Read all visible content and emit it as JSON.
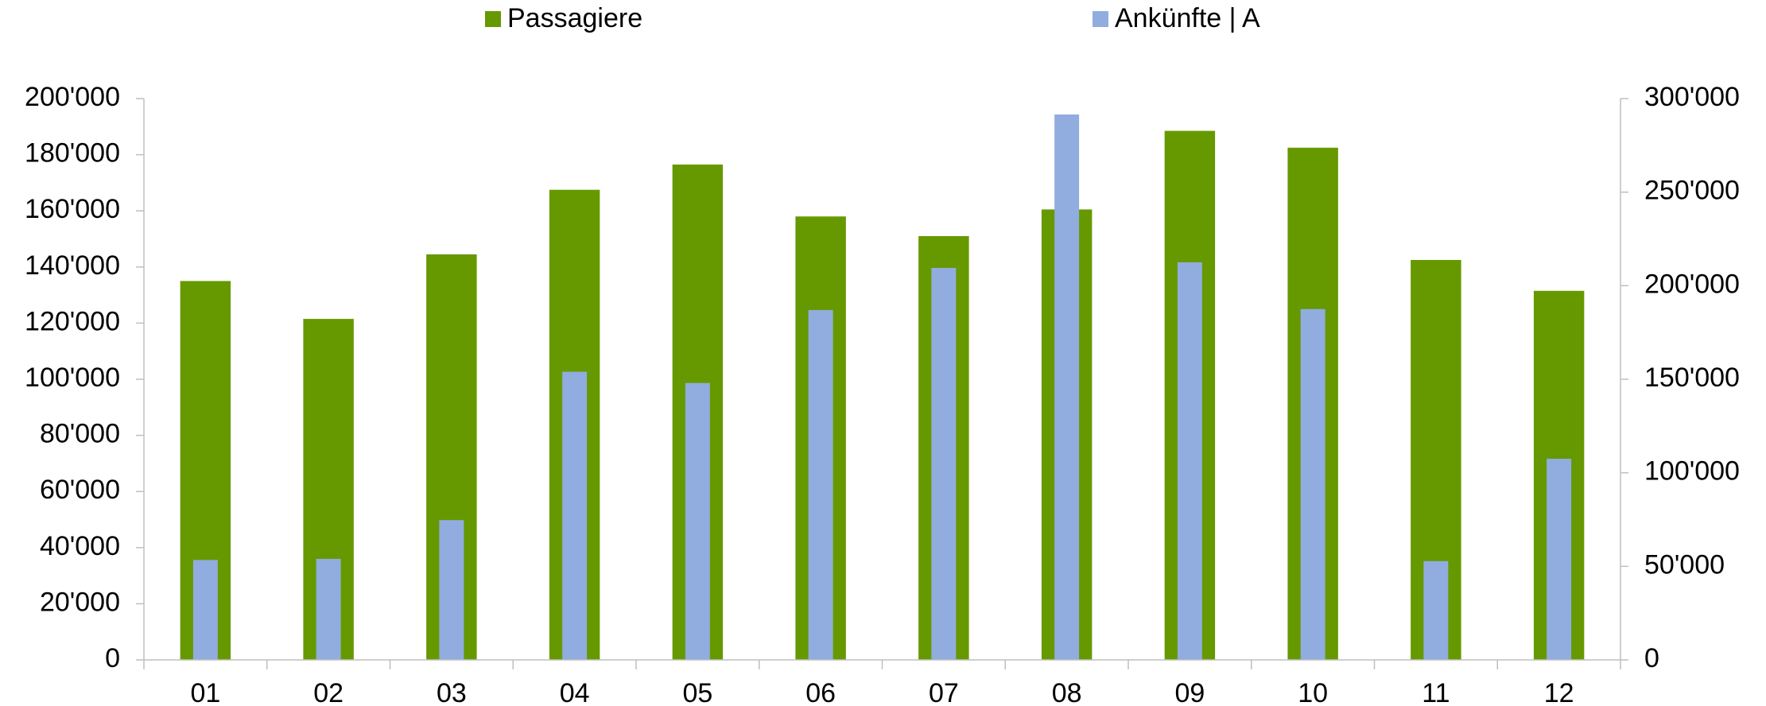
{
  "chart_data": {
    "type": "bar",
    "categories": [
      "01",
      "02",
      "03",
      "04",
      "05",
      "06",
      "07",
      "08",
      "09",
      "10",
      "11",
      "12"
    ],
    "series": [
      {
        "name": "Passagiere",
        "color": "#669900",
        "values": [
          135000,
          121500,
          144500,
          167500,
          176500,
          158000,
          151000,
          160500,
          188500,
          182500,
          142500,
          131500
        ]
      },
      {
        "name": "Ankünfte | A",
        "color": "#91acdf",
        "axis": "y2",
        "values": [
          53400,
          54000,
          74700,
          154000,
          148000,
          187000,
          209500,
          291500,
          212500,
          187500,
          52800,
          107500
        ]
      }
    ],
    "ylim": [
      0,
      200000
    ],
    "yticks": [
      0,
      {
        "value": 20000,
        "label": "20'000"
      },
      {
        "value": 40000,
        "label": "40'000"
      },
      {
        "value": 60000,
        "label": "60'000"
      },
      {
        "value": 80000,
        "label": "80'000"
      },
      {
        "value": 100000,
        "label": "100'000"
      },
      {
        "value": 120000,
        "label": "120'000"
      },
      {
        "value": 140000,
        "label": "140'000"
      },
      {
        "value": 160000,
        "label": "160'000"
      },
      {
        "value": 180000,
        "label": "180'000"
      },
      {
        "value": 200000,
        "label": "200'000"
      }
    ],
    "y2lim": [
      0,
      300000
    ],
    "y2ticks": [
      0,
      {
        "value": 50000,
        "label": "50'000"
      },
      {
        "value": 100000,
        "label": "100'000"
      },
      {
        "value": 150000,
        "label": "150'000"
      },
      {
        "value": 200000,
        "label": "200'000"
      },
      {
        "value": 250000,
        "label": "250'000"
      },
      {
        "value": 300000,
        "label": "300'000"
      }
    ],
    "grid": false,
    "legend": "top"
  }
}
